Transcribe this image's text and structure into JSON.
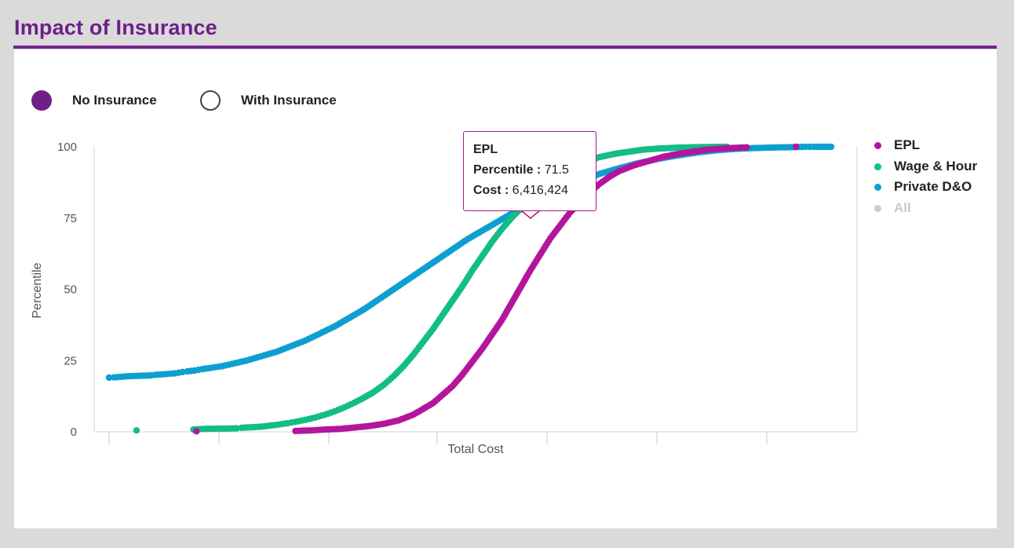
{
  "page": {
    "title": "Impact of Insurance"
  },
  "toggles": [
    {
      "label": "No Insurance",
      "selected": true
    },
    {
      "label": "With Insurance",
      "selected": false
    }
  ],
  "tooltip": {
    "series": "EPL",
    "percentile_label": "Percentile",
    "percentile_value": "71.5",
    "cost_label": "Cost",
    "cost_value": "6,416,424"
  },
  "colors": {
    "brand": "#6d1f8a",
    "epl": "#b3159c",
    "wage_hour": "#12bd86",
    "private_do": "#0e9fd1",
    "all_inactive": "#cccccc"
  },
  "chart_data": {
    "type": "scatter",
    "xlabel": "Total Cost",
    "ylabel": "Percentile",
    "ylim": [
      0,
      100
    ],
    "y_ticks": [
      "0",
      "25",
      "50",
      "75",
      "100"
    ],
    "x_tick_labels_shown": false,
    "legend": "right",
    "series": [
      {
        "name": "EPL",
        "color": "#b3159c",
        "x": [
          0.89,
          1.9,
          2.07,
          2.2,
          2.35,
          2.5,
          2.65,
          2.8,
          2.95,
          3.1,
          3.2,
          3.3,
          3.4,
          3.5,
          3.6,
          3.7,
          3.8,
          3.9,
          4.0,
          4.1,
          4.2,
          4.3,
          4.4,
          4.5,
          4.6,
          4.7,
          4.8,
          4.9,
          5.0,
          5.1,
          5.2,
          5.35,
          5.5,
          5.65,
          5.8,
          5.95,
          6.1,
          6.3,
          6.5,
          7.0
        ],
        "y": [
          0.2,
          0.3,
          0.5,
          0.8,
          1.0,
          1.5,
          2.0,
          2.8,
          4.0,
          6.0,
          8.0,
          10.0,
          13.0,
          16.0,
          20.0,
          24.5,
          29.0,
          34.0,
          39.0,
          45.0,
          51.0,
          57.0,
          62.5,
          68.0,
          72.5,
          77.0,
          80.5,
          84.0,
          87.0,
          89.5,
          91.5,
          93.5,
          95.0,
          96.5,
          97.5,
          98.3,
          99.0,
          99.5,
          99.8,
          100.0
        ]
      },
      {
        "name": "Wage & Hour",
        "color": "#12bd86",
        "x": [
          0.28,
          0.86,
          0.95,
          1.3,
          1.35,
          1.55,
          1.65,
          1.72,
          1.82,
          1.9,
          2.0,
          2.1,
          2.2,
          2.3,
          2.4,
          2.5,
          2.6,
          2.7,
          2.8,
          2.9,
          3.0,
          3.1,
          3.2,
          3.3,
          3.4,
          3.5,
          3.6,
          3.7,
          3.8,
          3.9,
          4.0,
          4.1,
          4.2,
          4.3,
          4.4,
          4.5,
          4.6,
          4.7,
          4.8,
          4.9,
          5.0,
          5.15,
          5.3,
          5.45,
          5.6,
          5.8,
          6.0,
          6.3
        ],
        "y": [
          0.5,
          0.8,
          1.0,
          1.2,
          1.4,
          1.8,
          2.2,
          2.5,
          3.0,
          3.5,
          4.2,
          5.0,
          6.0,
          7.2,
          8.6,
          10.2,
          12.0,
          14.0,
          16.5,
          19.5,
          23.0,
          27.0,
          31.5,
          36.0,
          41.0,
          46.0,
          51.0,
          56.5,
          61.5,
          66.5,
          71.0,
          75.0,
          78.5,
          82.0,
          85.0,
          87.5,
          90.0,
          92.0,
          93.8,
          95.2,
          96.4,
          97.5,
          98.3,
          99.0,
          99.4,
          99.7,
          99.9,
          100.0
        ]
      },
      {
        "name": "Private D&O",
        "color": "#0e9fd1",
        "x": [
          0.0,
          0.05,
          0.2,
          0.43,
          0.47,
          0.56,
          0.67,
          0.75,
          0.8,
          0.87,
          0.95,
          1.05,
          1.15,
          1.25,
          1.4,
          1.55,
          1.7,
          1.85,
          2.0,
          2.15,
          2.3,
          2.45,
          2.6,
          2.75,
          2.9,
          3.05,
          3.2,
          3.35,
          3.5,
          3.65,
          3.8,
          3.95,
          4.1,
          4.25,
          4.4,
          4.55,
          4.7,
          4.85,
          5.0,
          5.2,
          5.4,
          5.6,
          5.8,
          6.0,
          6.2,
          6.4,
          6.6,
          6.85,
          7.0,
          7.1,
          7.18,
          7.3,
          7.36
        ],
        "y": [
          19.0,
          19.1,
          19.5,
          19.8,
          20.0,
          20.2,
          20.5,
          21.0,
          21.2,
          21.5,
          22.0,
          22.5,
          23.0,
          23.8,
          25.0,
          26.5,
          28.0,
          30.0,
          32.0,
          34.5,
          37.0,
          40.0,
          43.0,
          46.5,
          50.0,
          53.5,
          57.0,
          60.5,
          64.0,
          67.5,
          70.5,
          73.5,
          76.5,
          79.0,
          81.5,
          84.0,
          86.5,
          88.5,
          90.5,
          92.5,
          94.3,
          95.8,
          97.0,
          98.0,
          98.8,
          99.3,
          99.6,
          99.8,
          99.9,
          100.0,
          100.0,
          100.0,
          100.0
        ]
      },
      {
        "name": "All",
        "color": "#cccccc",
        "x": [],
        "y": []
      }
    ]
  }
}
